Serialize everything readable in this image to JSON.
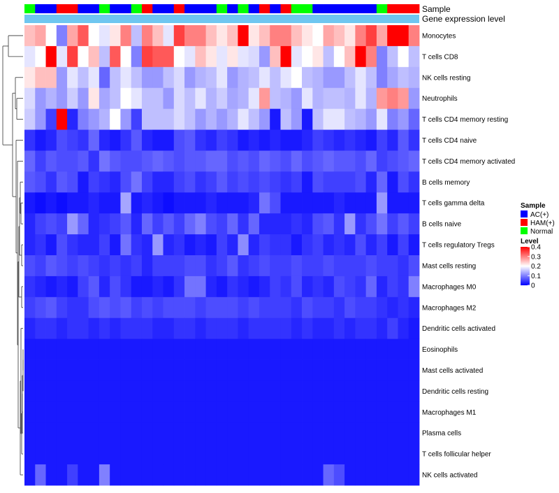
{
  "chart_data": {
    "type": "heatmap",
    "annotation_tracks": [
      "Sample",
      "Gene expression level"
    ],
    "rows": [
      "Monocytes",
      "T cells CD8",
      "NK cells resting",
      "Neutrophils",
      "T cells CD4 memory resting",
      "T cells CD4 naive",
      "T cells CD4 memory activated",
      "B cells memory",
      "T cells gamma delta",
      "B cells naive",
      "T cells regulatory  Tregs",
      "Mast cells resting",
      "Macrophages M0",
      "Macrophages M2",
      "Dendritic cells activated",
      "Eosinophils",
      "Mast cells activated",
      "Dendritic cells resting",
      "Macrophages M1",
      "Plasma cells",
      "T cells follicular helper",
      "NK cells activated"
    ],
    "sample_groups": [
      "N",
      "A",
      "A",
      "H",
      "H",
      "A",
      "A",
      "N",
      "A",
      "A",
      "N",
      "H",
      "A",
      "A",
      "H",
      "A",
      "A",
      "A",
      "N",
      "A",
      "N",
      "A",
      "H",
      "A",
      "H",
      "N",
      "N",
      "A",
      "A",
      "A",
      "A",
      "A",
      "A",
      "N",
      "H",
      "H",
      "H"
    ],
    "values": [
      [
        0.25,
        0.27,
        0.2,
        0.1,
        0.27,
        0.33,
        0.2,
        0.18,
        0.22,
        0.3,
        0.15,
        0.3,
        0.25,
        0.18,
        0.35,
        0.3,
        0.3,
        0.25,
        0.22,
        0.25,
        0.4,
        0.22,
        0.25,
        0.3,
        0.3,
        0.25,
        0.22,
        0.2,
        0.27,
        0.25,
        0.22,
        0.3,
        0.35,
        0.27,
        0.4,
        0.4,
        0.3
      ],
      [
        0.18,
        0.2,
        0.4,
        0.18,
        0.35,
        0.2,
        0.25,
        0.15,
        0.33,
        0.2,
        0.1,
        0.35,
        0.33,
        0.33,
        0.2,
        0.18,
        0.25,
        0.22,
        0.18,
        0.22,
        0.18,
        0.17,
        0.12,
        0.25,
        0.4,
        0.18,
        0.2,
        0.22,
        0.15,
        0.2,
        0.25,
        0.4,
        0.3,
        0.1,
        0.15,
        0.2,
        0.15
      ],
      [
        0.22,
        0.25,
        0.25,
        0.12,
        0.18,
        0.15,
        0.18,
        0.08,
        0.15,
        0.18,
        0.15,
        0.12,
        0.12,
        0.15,
        0.17,
        0.12,
        0.14,
        0.15,
        0.18,
        0.12,
        0.14,
        0.15,
        0.18,
        0.15,
        0.18,
        0.2,
        0.15,
        0.14,
        0.12,
        0.12,
        0.15,
        0.18,
        0.15,
        0.1,
        0.13,
        0.15,
        0.14
      ],
      [
        0.17,
        0.12,
        0.14,
        0.12,
        0.16,
        0.12,
        0.22,
        0.13,
        0.15,
        0.2,
        0.18,
        0.15,
        0.15,
        0.12,
        0.17,
        0.15,
        0.18,
        0.14,
        0.16,
        0.13,
        0.14,
        0.18,
        0.28,
        0.15,
        0.14,
        0.12,
        0.18,
        0.14,
        0.15,
        0.15,
        0.14,
        0.18,
        0.14,
        0.28,
        0.3,
        0.28,
        0.12
      ],
      [
        0.16,
        0.12,
        0.05,
        0.4,
        0.03,
        0.1,
        0.12,
        0.14,
        0.2,
        0.12,
        0.05,
        0.15,
        0.15,
        0.15,
        0.17,
        0.15,
        0.12,
        0.14,
        0.12,
        0.14,
        0.18,
        0.15,
        0.12,
        0.02,
        0.15,
        0.12,
        0.02,
        0.15,
        0.18,
        0.18,
        0.15,
        0.14,
        0.12,
        0.18,
        0.1,
        0.12,
        0.08
      ],
      [
        0.04,
        0.02,
        0.03,
        0.06,
        0.05,
        0.04,
        0.08,
        0.03,
        0.02,
        0.04,
        0.07,
        0.03,
        0.02,
        0.02,
        0.06,
        0.07,
        0.04,
        0.03,
        0.05,
        0.04,
        0.02,
        0.03,
        0.02,
        0.03,
        0.02,
        0.02,
        0.03,
        0.05,
        0.04,
        0.03,
        0.04,
        0.03,
        0.02,
        0.05,
        0.03,
        0.07,
        0.04
      ],
      [
        0.08,
        0.05,
        0.07,
        0.06,
        0.06,
        0.07,
        0.04,
        0.09,
        0.07,
        0.06,
        0.06,
        0.07,
        0.08,
        0.07,
        0.06,
        0.07,
        0.07,
        0.08,
        0.08,
        0.06,
        0.07,
        0.06,
        0.08,
        0.07,
        0.06,
        0.08,
        0.06,
        0.07,
        0.08,
        0.07,
        0.07,
        0.06,
        0.08,
        0.05,
        0.06,
        0.07,
        0.08
      ],
      [
        0.07,
        0.06,
        0.04,
        0.07,
        0.06,
        0.02,
        0.05,
        0.04,
        0.03,
        0.06,
        0.09,
        0.05,
        0.03,
        0.03,
        0.05,
        0.06,
        0.04,
        0.05,
        0.07,
        0.05,
        0.06,
        0.05,
        0.06,
        0.05,
        0.04,
        0.05,
        0.02,
        0.06,
        0.05,
        0.05,
        0.05,
        0.06,
        0.03,
        0.08,
        0.02,
        0.06,
        0.04
      ],
      [
        0.02,
        0.01,
        0.02,
        0.01,
        0.02,
        0.02,
        0.03,
        0.02,
        0.02,
        0.13,
        0.02,
        0.03,
        0.02,
        0.01,
        0.02,
        0.02,
        0.02,
        0.03,
        0.02,
        0.02,
        0.02,
        0.03,
        0.09,
        0.06,
        0.02,
        0.02,
        0.02,
        0.02,
        0.02,
        0.03,
        0.02,
        0.02,
        0.02,
        0.12,
        0.02,
        0.02,
        0.02
      ],
      [
        0.03,
        0.05,
        0.06,
        0.05,
        0.12,
        0.08,
        0.03,
        0.04,
        0.05,
        0.07,
        0.03,
        0.08,
        0.05,
        0.07,
        0.05,
        0.08,
        0.1,
        0.06,
        0.05,
        0.08,
        0.04,
        0.08,
        0.03,
        0.03,
        0.03,
        0.04,
        0.03,
        0.06,
        0.07,
        0.04,
        0.12,
        0.04,
        0.06,
        0.09,
        0.05,
        0.07,
        0.05
      ],
      [
        0.03,
        0.04,
        0.02,
        0.06,
        0.04,
        0.03,
        0.03,
        0.05,
        0.02,
        0.09,
        0.04,
        0.03,
        0.12,
        0.03,
        0.04,
        0.02,
        0.03,
        0.02,
        0.05,
        0.03,
        0.11,
        0.03,
        0.05,
        0.04,
        0.04,
        0.02,
        0.04,
        0.05,
        0.03,
        0.04,
        0.03,
        0.06,
        0.03,
        0.05,
        0.02,
        0.05,
        0.02
      ],
      [
        0.06,
        0.05,
        0.07,
        0.06,
        0.05,
        0.06,
        0.05,
        0.04,
        0.05,
        0.04,
        0.05,
        0.03,
        0.05,
        0.05,
        0.05,
        0.06,
        0.06,
        0.04,
        0.05,
        0.07,
        0.04,
        0.05,
        0.06,
        0.05,
        0.05,
        0.06,
        0.05,
        0.05,
        0.06,
        0.05,
        0.05,
        0.05,
        0.06,
        0.05,
        0.05,
        0.04,
        0.06
      ],
      [
        0.04,
        0.03,
        0.02,
        0.03,
        0.02,
        0.05,
        0.07,
        0.03,
        0.06,
        0.04,
        0.02,
        0.02,
        0.03,
        0.02,
        0.04,
        0.09,
        0.09,
        0.03,
        0.02,
        0.04,
        0.03,
        0.02,
        0.03,
        0.05,
        0.04,
        0.06,
        0.03,
        0.04,
        0.03,
        0.06,
        0.05,
        0.04,
        0.08,
        0.03,
        0.05,
        0.04,
        0.1
      ],
      [
        0.05,
        0.06,
        0.07,
        0.05,
        0.04,
        0.04,
        0.06,
        0.07,
        0.06,
        0.07,
        0.05,
        0.06,
        0.05,
        0.06,
        0.06,
        0.06,
        0.05,
        0.06,
        0.06,
        0.06,
        0.05,
        0.06,
        0.05,
        0.05,
        0.05,
        0.04,
        0.06,
        0.05,
        0.05,
        0.04,
        0.06,
        0.05,
        0.05,
        0.04,
        0.03,
        0.04,
        0.03
      ],
      [
        0.03,
        0.04,
        0.04,
        0.03,
        0.04,
        0.04,
        0.03,
        0.04,
        0.03,
        0.04,
        0.04,
        0.04,
        0.03,
        0.03,
        0.04,
        0.04,
        0.03,
        0.04,
        0.04,
        0.04,
        0.03,
        0.04,
        0.04,
        0.04,
        0.04,
        0.03,
        0.04,
        0.03,
        0.03,
        0.04,
        0.03,
        0.04,
        0.04,
        0.03,
        0.05,
        0.03,
        0.02
      ],
      [
        0.02,
        0.02,
        0.02,
        0.02,
        0.02,
        0.02,
        0.02,
        0.02,
        0.02,
        0.02,
        0.02,
        0.02,
        0.02,
        0.02,
        0.02,
        0.02,
        0.02,
        0.02,
        0.02,
        0.02,
        0.02,
        0.02,
        0.02,
        0.02,
        0.02,
        0.02,
        0.02,
        0.02,
        0.02,
        0.02,
        0.02,
        0.02,
        0.02,
        0.02,
        0.02,
        0.02,
        0.02
      ],
      [
        0.02,
        0.02,
        0.02,
        0.02,
        0.02,
        0.02,
        0.02,
        0.02,
        0.02,
        0.02,
        0.02,
        0.02,
        0.02,
        0.02,
        0.02,
        0.02,
        0.02,
        0.02,
        0.02,
        0.02,
        0.02,
        0.02,
        0.02,
        0.02,
        0.02,
        0.02,
        0.02,
        0.02,
        0.02,
        0.02,
        0.02,
        0.02,
        0.02,
        0.02,
        0.02,
        0.02,
        0.02
      ],
      [
        0.02,
        0.02,
        0.02,
        0.02,
        0.02,
        0.02,
        0.02,
        0.02,
        0.02,
        0.02,
        0.02,
        0.02,
        0.02,
        0.02,
        0.02,
        0.02,
        0.02,
        0.02,
        0.02,
        0.02,
        0.02,
        0.02,
        0.02,
        0.02,
        0.02,
        0.02,
        0.02,
        0.02,
        0.02,
        0.02,
        0.02,
        0.02,
        0.02,
        0.02,
        0.02,
        0.02,
        0.02
      ],
      [
        0.02,
        0.02,
        0.02,
        0.02,
        0.02,
        0.02,
        0.02,
        0.02,
        0.02,
        0.02,
        0.02,
        0.02,
        0.02,
        0.02,
        0.02,
        0.02,
        0.02,
        0.02,
        0.02,
        0.02,
        0.02,
        0.02,
        0.02,
        0.02,
        0.02,
        0.02,
        0.02,
        0.02,
        0.02,
        0.02,
        0.02,
        0.02,
        0.02,
        0.02,
        0.02,
        0.02,
        0.02
      ],
      [
        0.02,
        0.02,
        0.02,
        0.02,
        0.02,
        0.02,
        0.02,
        0.02,
        0.02,
        0.02,
        0.02,
        0.02,
        0.02,
        0.02,
        0.02,
        0.02,
        0.02,
        0.02,
        0.02,
        0.02,
        0.02,
        0.02,
        0.02,
        0.02,
        0.02,
        0.02,
        0.02,
        0.02,
        0.02,
        0.02,
        0.02,
        0.02,
        0.02,
        0.02,
        0.02,
        0.02,
        0.02
      ],
      [
        0.02,
        0.02,
        0.02,
        0.02,
        0.02,
        0.02,
        0.02,
        0.02,
        0.02,
        0.02,
        0.02,
        0.02,
        0.02,
        0.02,
        0.02,
        0.02,
        0.02,
        0.02,
        0.02,
        0.02,
        0.02,
        0.02,
        0.02,
        0.02,
        0.02,
        0.02,
        0.02,
        0.02,
        0.02,
        0.02,
        0.02,
        0.02,
        0.02,
        0.02,
        0.02,
        0.02,
        0.02
      ],
      [
        0.02,
        0.08,
        0.02,
        0.02,
        0.05,
        0.02,
        0.02,
        0.1,
        0.02,
        0.02,
        0.02,
        0.02,
        0.02,
        0.02,
        0.02,
        0.02,
        0.02,
        0.02,
        0.02,
        0.02,
        0.02,
        0.02,
        0.02,
        0.02,
        0.02,
        0.02,
        0.02,
        0.02,
        0.08,
        0.06,
        0.02,
        0.02,
        0.02,
        0.02,
        0.02,
        0.02,
        0.02
      ]
    ],
    "legend": {
      "sample": {
        "title": "Sample",
        "items": [
          {
            "key": "A",
            "label": "AC(+)",
            "color": "#0000ff"
          },
          {
            "key": "H",
            "label": "HAM(+)",
            "color": "#ff0000"
          },
          {
            "key": "N",
            "label": "Normal",
            "color": "#00ff00"
          }
        ]
      },
      "level": {
        "title": "Level",
        "ticks": [
          0.4,
          0.3,
          0.2,
          0.1,
          0
        ],
        "tick_labels": [
          "0.4",
          "0.3",
          "0.2",
          "0.1",
          "0"
        ],
        "colors": [
          "#0000ff",
          "#ffffff",
          "#ff0000"
        ],
        "range": [
          0,
          0.4
        ]
      }
    },
    "expression_track_color": "#6ec6f0",
    "legend_placement": "right"
  }
}
